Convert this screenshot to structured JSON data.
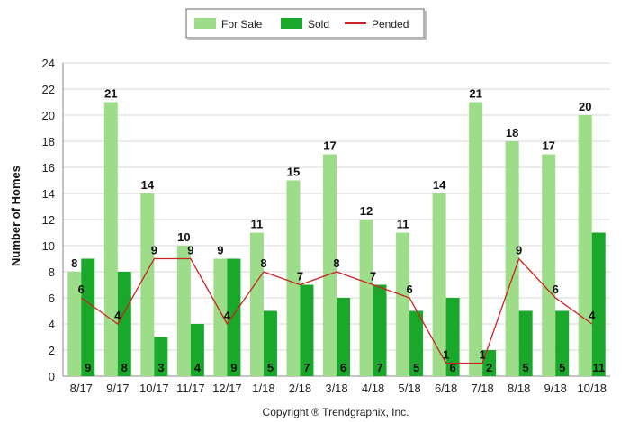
{
  "chart_data": {
    "type": "bar",
    "categories": [
      "8/17",
      "9/17",
      "10/17",
      "11/17",
      "12/17",
      "1/18",
      "2/18",
      "3/18",
      "4/18",
      "5/18",
      "6/18",
      "7/18",
      "8/18",
      "9/18",
      "10/18"
    ],
    "series": [
      {
        "name": "For Sale",
        "kind": "bar",
        "color": "#9ddd8a",
        "values": [
          8,
          21,
          14,
          10,
          9,
          11,
          15,
          17,
          12,
          11,
          14,
          21,
          18,
          17,
          20
        ]
      },
      {
        "name": "Sold",
        "kind": "bar",
        "color": "#1aa82a",
        "values": [
          9,
          8,
          3,
          4,
          9,
          5,
          7,
          6,
          7,
          5,
          6,
          2,
          5,
          5,
          11
        ]
      },
      {
        "name": "Pended",
        "kind": "line",
        "color": "#cc2222",
        "values": [
          6,
          4,
          9,
          9,
          4,
          8,
          7,
          8,
          7,
          6,
          1,
          1,
          9,
          6,
          4
        ]
      }
    ],
    "ylabel": "Number of Homes",
    "xlabel": "",
    "ylim": [
      0,
      24
    ],
    "yticks": [
      0,
      2,
      4,
      6,
      8,
      10,
      12,
      14,
      16,
      18,
      20,
      22,
      24
    ],
    "grid": true,
    "legend_position": "top-center",
    "footer": "Copyright ® Trendgraphix, Inc."
  }
}
